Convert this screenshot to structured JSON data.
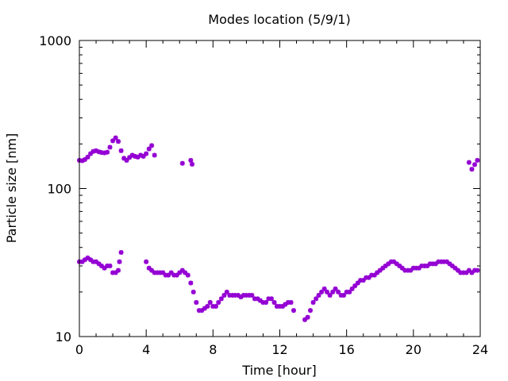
{
  "chart_data": {
    "type": "scatter",
    "title": "Modes location (5/9/1)",
    "xlabel": "Time [hour]",
    "ylabel": "Particle size [nm]",
    "xlim": [
      0,
      24
    ],
    "ylim": [
      10,
      1000
    ],
    "yscale": "log",
    "x_ticks": [
      0,
      4,
      8,
      12,
      16,
      20,
      24
    ],
    "x_tick_labels": [
      "0",
      "4",
      "8",
      "12",
      "16",
      "20",
      "24"
    ],
    "y_ticks": [
      10,
      100,
      1000
    ],
    "y_tick_labels": [
      "10",
      "100",
      "1000"
    ],
    "grid": false,
    "legend": "none",
    "marker_color": "#9400d3",
    "series": [
      {
        "points": [
          [
            0.0,
            155
          ],
          [
            0.17,
            154
          ],
          [
            0.33,
            157
          ],
          [
            0.5,
            163
          ],
          [
            0.67,
            172
          ],
          [
            0.83,
            178
          ],
          [
            1.0,
            180
          ],
          [
            1.17,
            177
          ],
          [
            1.33,
            175
          ],
          [
            1.5,
            174
          ],
          [
            1.67,
            176
          ],
          [
            1.83,
            190
          ],
          [
            2.0,
            210
          ],
          [
            2.17,
            220
          ],
          [
            2.33,
            208
          ],
          [
            2.5,
            180
          ],
          [
            2.67,
            160
          ],
          [
            2.83,
            155
          ],
          [
            3.0,
            162
          ],
          [
            3.17,
            168
          ],
          [
            3.33,
            165
          ],
          [
            3.5,
            163
          ],
          [
            3.67,
            168
          ],
          [
            3.83,
            165
          ],
          [
            4.0,
            172
          ],
          [
            4.17,
            185
          ],
          [
            4.33,
            195
          ],
          [
            4.5,
            168
          ],
          [
            6.17,
            148
          ],
          [
            6.67,
            155
          ],
          [
            6.75,
            146
          ],
          [
            23.33,
            150
          ],
          [
            23.5,
            135
          ],
          [
            23.67,
            145
          ],
          [
            23.83,
            155
          ]
        ]
      },
      {
        "points": [
          [
            0.0,
            32
          ],
          [
            0.17,
            32
          ],
          [
            0.33,
            33
          ],
          [
            0.5,
            34
          ],
          [
            0.67,
            33
          ],
          [
            0.83,
            32
          ],
          [
            1.0,
            32
          ],
          [
            1.17,
            31
          ],
          [
            1.33,
            30
          ],
          [
            1.5,
            29
          ],
          [
            1.67,
            30
          ],
          [
            1.83,
            30
          ],
          [
            2.0,
            27
          ],
          [
            2.17,
            27
          ],
          [
            2.33,
            28
          ],
          [
            2.5,
            37
          ],
          [
            2.4,
            32
          ],
          [
            4.0,
            32
          ],
          [
            4.17,
            29
          ],
          [
            4.33,
            28
          ],
          [
            4.5,
            27
          ],
          [
            4.67,
            27
          ],
          [
            4.83,
            27
          ],
          [
            5.0,
            27
          ],
          [
            5.17,
            26
          ],
          [
            5.33,
            26
          ],
          [
            5.5,
            27
          ],
          [
            5.67,
            26
          ],
          [
            5.83,
            26
          ],
          [
            6.0,
            27
          ],
          [
            6.17,
            28
          ],
          [
            6.33,
            27
          ],
          [
            6.5,
            26
          ],
          [
            6.67,
            23
          ],
          [
            6.83,
            20
          ],
          [
            7.0,
            17
          ],
          [
            7.17,
            15
          ],
          [
            7.33,
            15
          ],
          [
            7.5,
            15.5
          ],
          [
            7.67,
            16
          ],
          [
            7.83,
            17
          ],
          [
            8.0,
            16
          ],
          [
            8.17,
            16
          ],
          [
            8.33,
            17
          ],
          [
            8.5,
            18
          ],
          [
            8.67,
            19
          ],
          [
            8.83,
            20
          ],
          [
            9.0,
            19
          ],
          [
            9.17,
            19
          ],
          [
            9.33,
            19
          ],
          [
            9.5,
            19
          ],
          [
            9.67,
            18.5
          ],
          [
            9.83,
            19
          ],
          [
            10.0,
            19
          ],
          [
            10.17,
            19
          ],
          [
            10.33,
            19
          ],
          [
            10.5,
            18
          ],
          [
            10.67,
            18
          ],
          [
            10.83,
            17.5
          ],
          [
            11.0,
            17
          ],
          [
            11.17,
            17
          ],
          [
            11.33,
            18
          ],
          [
            11.5,
            18
          ],
          [
            11.67,
            17
          ],
          [
            11.83,
            16
          ],
          [
            12.0,
            16
          ],
          [
            12.17,
            16
          ],
          [
            12.33,
            16.5
          ],
          [
            12.5,
            17
          ],
          [
            12.67,
            17
          ],
          [
            12.83,
            15
          ],
          [
            13.5,
            13
          ],
          [
            13.67,
            13.5
          ],
          [
            13.83,
            15
          ],
          [
            14.0,
            17
          ],
          [
            14.17,
            18
          ],
          [
            14.33,
            19
          ],
          [
            14.5,
            20
          ],
          [
            14.67,
            21
          ],
          [
            14.83,
            20
          ],
          [
            15.0,
            19
          ],
          [
            15.17,
            20
          ],
          [
            15.33,
            21
          ],
          [
            15.5,
            20
          ],
          [
            15.67,
            19
          ],
          [
            15.83,
            19
          ],
          [
            16.0,
            20
          ],
          [
            16.17,
            20
          ],
          [
            16.33,
            21
          ],
          [
            16.5,
            22
          ],
          [
            16.67,
            23
          ],
          [
            16.83,
            24
          ],
          [
            17.0,
            24
          ],
          [
            17.17,
            25
          ],
          [
            17.33,
            25
          ],
          [
            17.5,
            26
          ],
          [
            17.67,
            26
          ],
          [
            17.83,
            27
          ],
          [
            18.0,
            28
          ],
          [
            18.17,
            29
          ],
          [
            18.33,
            30
          ],
          [
            18.5,
            31
          ],
          [
            18.67,
            32
          ],
          [
            18.83,
            32
          ],
          [
            19.0,
            31
          ],
          [
            19.17,
            30
          ],
          [
            19.33,
            29
          ],
          [
            19.5,
            28
          ],
          [
            19.67,
            28
          ],
          [
            19.83,
            28
          ],
          [
            20.0,
            29
          ],
          [
            20.17,
            29
          ],
          [
            20.33,
            29
          ],
          [
            20.5,
            30
          ],
          [
            20.67,
            30
          ],
          [
            20.83,
            30
          ],
          [
            21.0,
            31
          ],
          [
            21.17,
            31
          ],
          [
            21.33,
            31
          ],
          [
            21.5,
            32
          ],
          [
            21.67,
            32
          ],
          [
            21.83,
            32
          ],
          [
            22.0,
            32
          ],
          [
            22.17,
            31
          ],
          [
            22.33,
            30
          ],
          [
            22.5,
            29
          ],
          [
            22.67,
            28
          ],
          [
            22.83,
            27
          ],
          [
            23.0,
            27
          ],
          [
            23.17,
            27
          ],
          [
            23.33,
            28
          ],
          [
            23.5,
            27
          ],
          [
            23.67,
            28
          ],
          [
            23.83,
            28
          ]
        ]
      }
    ]
  }
}
